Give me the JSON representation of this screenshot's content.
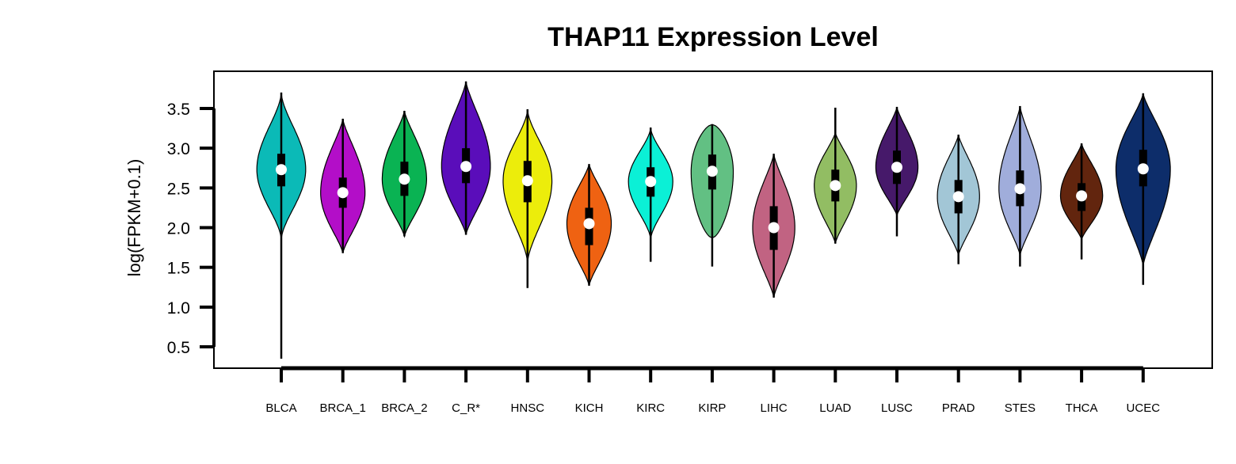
{
  "chart_data": {
    "type": "violin",
    "title": "THAP11 Expression Level",
    "xlabel": "",
    "ylabel": "log(FPKM+0.1)",
    "ylim": [
      0.2,
      3.95
    ],
    "yticks": [
      "0.5",
      "1.0",
      "1.5",
      "2.0",
      "2.5",
      "3.0",
      "3.5"
    ],
    "grid": false,
    "categories": [
      "BLCA",
      "BRCA_1",
      "BRCA_2",
      "C_R*",
      "HNSC",
      "KICH",
      "KIRC",
      "KIRP",
      "LIHC",
      "LUAD",
      "LUSC",
      "PRAD",
      "STES",
      "THCA",
      "UCEC"
    ],
    "series": [
      {
        "category": "BLCA",
        "color": "#0bbab7",
        "min": 0.35,
        "q1": 2.52,
        "median": 2.73,
        "q3": 2.93,
        "max": 3.7,
        "violin_min": 1.85,
        "violin_max": 3.7,
        "max_width": 0.88,
        "shape": "top"
      },
      {
        "category": "BRCA_1",
        "color": "#b30ec8",
        "min": 1.68,
        "q1": 2.25,
        "median": 2.44,
        "q3": 2.63,
        "max": 3.37,
        "violin_min": 1.68,
        "violin_max": 3.37,
        "max_width": 0.8,
        "shape": "mid"
      },
      {
        "category": "BRCA_2",
        "color": "#0ab353",
        "min": 1.89,
        "q1": 2.4,
        "median": 2.61,
        "q3": 2.83,
        "max": 3.47,
        "violin_min": 1.89,
        "violin_max": 3.47,
        "max_width": 0.8,
        "shape": "mid"
      },
      {
        "category": "C_R*",
        "color": "#5a0dba",
        "min": 1.91,
        "q1": 2.56,
        "median": 2.77,
        "q3": 3.0,
        "max": 3.84,
        "violin_min": 1.91,
        "violin_max": 3.84,
        "max_width": 0.88,
        "shape": "mid"
      },
      {
        "category": "HNSC",
        "color": "#eced0b",
        "min": 1.24,
        "q1": 2.32,
        "median": 2.59,
        "q3": 2.84,
        "max": 3.49,
        "violin_min": 1.55,
        "violin_max": 3.49,
        "max_width": 0.88,
        "shape": "top"
      },
      {
        "category": "KICH",
        "color": "#ef6212",
        "min": 1.27,
        "q1": 1.78,
        "median": 2.05,
        "q3": 2.25,
        "max": 2.8,
        "violin_min": 1.27,
        "violin_max": 2.8,
        "max_width": 0.8,
        "shape": "mid"
      },
      {
        "category": "KIRC",
        "color": "#0bf0d6",
        "min": 1.57,
        "q1": 2.39,
        "median": 2.58,
        "q3": 2.76,
        "max": 3.26,
        "violin_min": 1.85,
        "violin_max": 3.26,
        "max_width": 0.8,
        "shape": "top"
      },
      {
        "category": "KIRP",
        "color": "#62c083",
        "min": 1.51,
        "q1": 2.48,
        "median": 2.71,
        "q3": 2.92,
        "max": 3.3,
        "violin_min": 1.87,
        "violin_max": 3.3,
        "max_width": 0.76,
        "shape": "flat"
      },
      {
        "category": "LIHC",
        "color": "#c16382",
        "min": 1.12,
        "q1": 1.72,
        "median": 2.0,
        "q3": 2.27,
        "max": 2.93,
        "violin_min": 1.12,
        "violin_max": 2.93,
        "max_width": 0.76,
        "shape": "mid"
      },
      {
        "category": "LUAD",
        "color": "#92bd63",
        "min": 1.8,
        "q1": 2.33,
        "median": 2.53,
        "q3": 2.73,
        "max": 3.51,
        "violin_min": 1.8,
        "violin_max": 3.2,
        "max_width": 0.76,
        "shape": "mid"
      },
      {
        "category": "LUSC",
        "color": "#46196a",
        "min": 1.89,
        "q1": 2.55,
        "median": 2.76,
        "q3": 2.97,
        "max": 3.52,
        "violin_min": 2.15,
        "violin_max": 3.52,
        "max_width": 0.76,
        "shape": "mid"
      },
      {
        "category": "PRAD",
        "color": "#a2c6d6",
        "min": 1.54,
        "q1": 2.18,
        "median": 2.39,
        "q3": 2.6,
        "max": 3.17,
        "violin_min": 1.65,
        "violin_max": 3.17,
        "max_width": 0.76,
        "shape": "mid"
      },
      {
        "category": "STES",
        "color": "#a0addb",
        "min": 1.51,
        "q1": 2.27,
        "median": 2.49,
        "q3": 2.72,
        "max": 3.53,
        "violin_min": 1.65,
        "violin_max": 3.53,
        "max_width": 0.76,
        "shape": "mid"
      },
      {
        "category": "THCA",
        "color": "#62250e",
        "min": 1.6,
        "q1": 2.21,
        "median": 2.4,
        "q3": 2.56,
        "max": 3.06,
        "violin_min": 1.85,
        "violin_max": 3.06,
        "max_width": 0.76,
        "shape": "mid"
      },
      {
        "category": "UCEC",
        "color": "#0d2d6a",
        "min": 1.28,
        "q1": 2.52,
        "median": 2.74,
        "q3": 2.98,
        "max": 3.69,
        "violin_min": 1.52,
        "violin_max": 3.69,
        "max_width": 0.98,
        "shape": "mid"
      }
    ]
  }
}
